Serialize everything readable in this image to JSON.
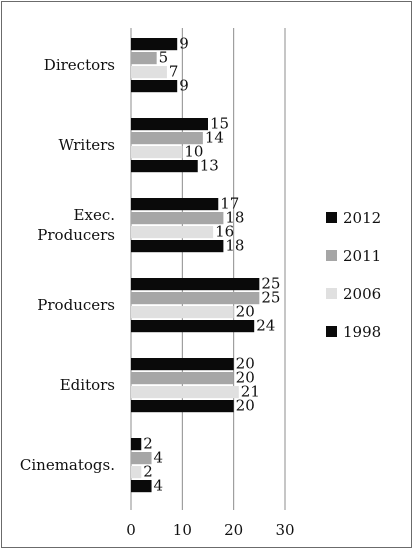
{
  "chart_data": {
    "type": "bar",
    "orientation": "horizontal",
    "categories": [
      [
        "Directors"
      ],
      [
        "Writers"
      ],
      [
        "Exec.",
        "Producers"
      ],
      [
        "Producers"
      ],
      [
        "Editors"
      ],
      [
        "Cinematogs."
      ]
    ],
    "series": [
      {
        "name": "2012",
        "color": "#0a0a0a",
        "values": [
          9,
          15,
          17,
          25,
          20,
          2
        ]
      },
      {
        "name": "2011",
        "color": "#a6a6a6",
        "values": [
          5,
          14,
          18,
          25,
          20,
          4
        ]
      },
      {
        "name": "2006",
        "color": "#e0e0e0",
        "values": [
          7,
          10,
          16,
          20,
          21,
          2
        ]
      },
      {
        "name": "1998",
        "color": "#0a0a0a",
        "values": [
          9,
          13,
          18,
          24,
          20,
          4
        ]
      }
    ],
    "xlim": [
      0,
      30
    ],
    "xticks": [
      0,
      10,
      20,
      30
    ],
    "grid": true,
    "legend_position": "right",
    "title": "",
    "xlabel": "",
    "ylabel": ""
  }
}
